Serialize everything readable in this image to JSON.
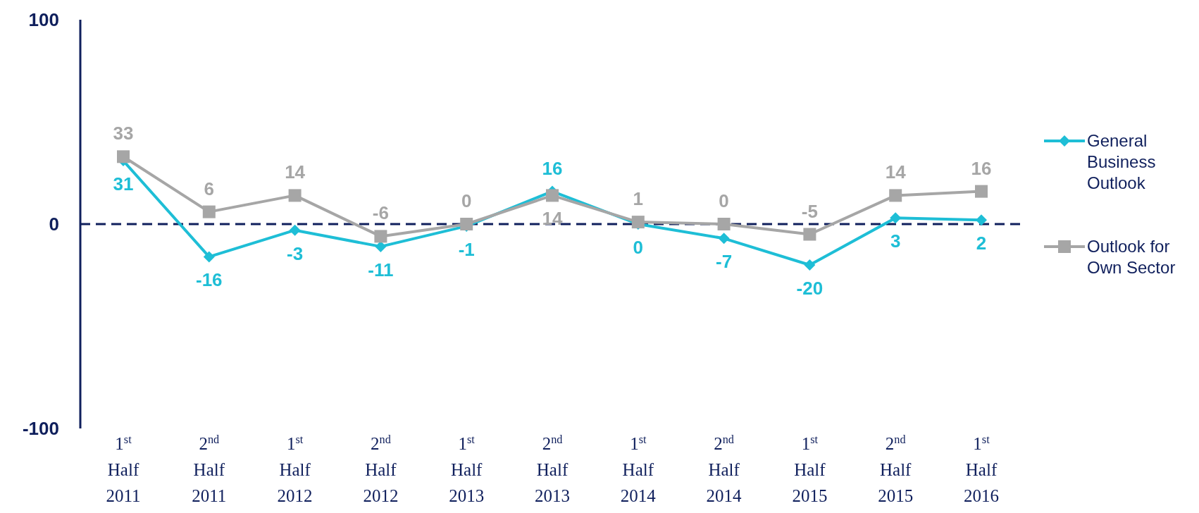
{
  "chart_data": {
    "type": "line",
    "categories": [
      "1$^{st}$\nHalf\n2011",
      "2$^{nd}$\nHalf\n2011",
      "1$^{st}$\nHalf\n2012",
      "2$^{nd}$\nHalf\n2012",
      "1$^{st}$\nHalf\n2013",
      "2$^{nd}$\nHalf\n2013",
      "1$^{st}$\nHalf\n2014",
      "2$^{nd}$\nHalf\n2014",
      "1$^{st}$\nHalf\n2015",
      "2$^{nd}$\nHalf\n2015",
      "1$^{st}$\nHalf\n2016"
    ],
    "series": [
      {
        "name": "General Business Outlook",
        "color": "#1ebed6",
        "marker": "diamond",
        "values": [
          31,
          -16,
          -3,
          -11,
          -1,
          16,
          0,
          -7,
          -20,
          3,
          2
        ]
      },
      {
        "name": "Outlook for Own Sector",
        "color": "#a6a6a6",
        "marker": "square",
        "values": [
          33,
          6,
          14,
          -6,
          0,
          14,
          1,
          0,
          -5,
          14,
          16
        ]
      }
    ],
    "ylim": [
      -100,
      100
    ],
    "yticks": [
      -100,
      0,
      100
    ],
    "grid": false,
    "legend": "right",
    "data_labels": true,
    "line_style": "solid",
    "ref_lines": [
      {
        "axis": "y",
        "value": 0,
        "color": "#0f1f5c",
        "line_style": "dashed"
      }
    ]
  }
}
